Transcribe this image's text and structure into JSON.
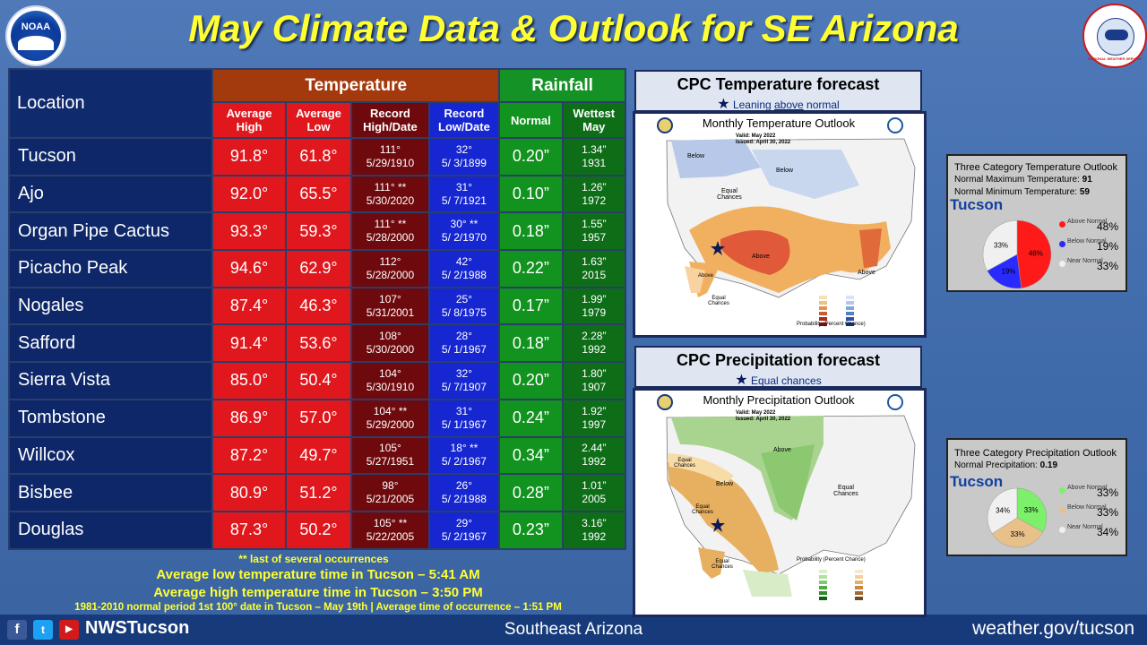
{
  "title": "May Climate Data & Outlook for SE Arizona",
  "logos": {
    "noaa": "NOAA",
    "nws": "NATIONAL WEATHER SERVICE"
  },
  "table": {
    "location_header": "Location",
    "temperature_header": "Temperature",
    "rainfall_header": "Rainfall",
    "sub_headers": [
      "Average High",
      "Average Low",
      "Record High/Date",
      "Record Low/Date",
      "Normal",
      "Wettest May"
    ],
    "rows": [
      {
        "loc": "Tucson",
        "avg_high": "91.8°",
        "avg_low": "61.8°",
        "rec_high": "111°",
        "rec_high_date": "5/29/1910",
        "rec_low": "32°",
        "rec_low_date": "5/ 3/1899",
        "normal": "0.20”",
        "wettest": "1.34”",
        "wettest_year": "1931"
      },
      {
        "loc": "Ajo",
        "avg_high": "92.0°",
        "avg_low": "65.5°",
        "rec_high": "111° **",
        "rec_high_date": "5/30/2020",
        "rec_low": "31°",
        "rec_low_date": "5/ 7/1921",
        "normal": "0.10”",
        "wettest": "1.26”",
        "wettest_year": "1972"
      },
      {
        "loc": "Organ Pipe Cactus",
        "avg_high": "93.3°",
        "avg_low": "59.3°",
        "rec_high": "111° **",
        "rec_high_date": "5/28/2000",
        "rec_low": "30° **",
        "rec_low_date": "5/ 2/1970",
        "normal": "0.18”",
        "wettest": "1.55”",
        "wettest_year": "1957"
      },
      {
        "loc": "Picacho Peak",
        "avg_high": "94.6°",
        "avg_low": "62.9°",
        "rec_high": "112°",
        "rec_high_date": "5/28/2000",
        "rec_low": "42°",
        "rec_low_date": "5/ 2/1988",
        "normal": "0.22”",
        "wettest": "1.63”",
        "wettest_year": "2015"
      },
      {
        "loc": "Nogales",
        "avg_high": "87.4°",
        "avg_low": "46.3°",
        "rec_high": "107°",
        "rec_high_date": "5/31/2001",
        "rec_low": "25°",
        "rec_low_date": "5/ 8/1975",
        "normal": "0.17”",
        "wettest": "1.99”",
        "wettest_year": "1979"
      },
      {
        "loc": "Safford",
        "avg_high": "91.4°",
        "avg_low": "53.6°",
        "rec_high": "108°",
        "rec_high_date": "5/30/2000",
        "rec_low": "28°",
        "rec_low_date": "5/ 1/1967",
        "normal": "0.18”",
        "wettest": "2.28”",
        "wettest_year": "1992"
      },
      {
        "loc": "Sierra Vista",
        "avg_high": "85.0°",
        "avg_low": "50.4°",
        "rec_high": "104°",
        "rec_high_date": "5/30/1910",
        "rec_low": "32°",
        "rec_low_date": "5/ 7/1907",
        "normal": "0.20”",
        "wettest": "1.80”",
        "wettest_year": "1907"
      },
      {
        "loc": "Tombstone",
        "avg_high": "86.9°",
        "avg_low": "57.0°",
        "rec_high": "104° **",
        "rec_high_date": "5/29/2000",
        "rec_low": "31°",
        "rec_low_date": "5/ 1/1967",
        "normal": "0.24”",
        "wettest": "1.92”",
        "wettest_year": "1997"
      },
      {
        "loc": "Willcox",
        "avg_high": "87.2°",
        "avg_low": "49.7°",
        "rec_high": "105°",
        "rec_high_date": "5/27/1951",
        "rec_low": "18° **",
        "rec_low_date": "5/ 2/1967",
        "normal": "0.34”",
        "wettest": "2.44”",
        "wettest_year": "1992"
      },
      {
        "loc": "Bisbee",
        "avg_high": "80.9°",
        "avg_low": "51.2°",
        "rec_high": "98°",
        "rec_high_date": "5/21/2005",
        "rec_low": "26°",
        "rec_low_date": "5/ 2/1988",
        "normal": "0.28”",
        "wettest": "1.01”",
        "wettest_year": "2005"
      },
      {
        "loc": "Douglas",
        "avg_high": "87.3°",
        "avg_low": "50.2°",
        "rec_high": "105° **",
        "rec_high_date": "5/22/2005",
        "rec_low": "29°",
        "rec_low_date": "5/ 2/1967",
        "normal": "0.23”",
        "wettest": "3.16”",
        "wettest_year": "1992"
      }
    ]
  },
  "notes": {
    "occurrences": "** last of several occurrences",
    "avg_low_time": "Average low temperature time in Tucson – 5:41 AM",
    "avg_high_time": "Average high temperature time in Tucson – 3:50 PM",
    "first_100": "1981-2010 normal period 1st 100° date in Tucson – May 19th | Average time of occurrence – 1:51 PM"
  },
  "footer": {
    "handle": "NWSTucson",
    "center": "Southeast Arizona",
    "url": "weather.gov/tucson"
  },
  "temp_forecast": {
    "header": "CPC Temperature forecast",
    "leaning_prefix": "Leaning ",
    "leaning_word": "above",
    "leaning_suffix": " normal",
    "map_title": "Monthly Temperature Outlook",
    "valid": "Valid:  May 2022",
    "issued": "Issued:  April 30, 2022",
    "labels": {
      "below1": "Below",
      "below2": "Below",
      "equal": "Equal Chances",
      "above": "Above",
      "above2": "Above",
      "above3": "Above",
      "equal2": "Equal Chances"
    },
    "legend_title": "Probability (Percent Chance)"
  },
  "precip_forecast": {
    "header": "CPC Precipitation forecast",
    "sub": "Equal chances",
    "map_title": "Monthly Precipitation Outlook",
    "valid": "Valid:  May 2022",
    "issued": "Issued:  April 30, 2022",
    "labels": {
      "above": "Above",
      "below": "Below",
      "equal1": "Equal Chances",
      "equal2": "Equal Chances",
      "equal3": "Equal Chances",
      "equal4": "Equal Chances"
    },
    "legend_title": "Probability (Percent Chance)"
  },
  "temp_pie": {
    "title": "Three Category Temperature Outlook",
    "line1_label": "Normal Maximum Temperature:",
    "line1_val": "91",
    "line2_label": "Normal Minimum Temperature:",
    "line2_val": "59",
    "city": "Tucson",
    "chart_data": {
      "type": "pie",
      "categories": [
        "Above Normal",
        "Below Normal",
        "Near Normal"
      ],
      "values": [
        48,
        19,
        33
      ],
      "labels": [
        "48%",
        "19%",
        "33%"
      ],
      "colors": [
        "#ff1a1a",
        "#2a2aff",
        "#f0f0f0"
      ]
    }
  },
  "precip_pie": {
    "title": "Three Category Precipitation Outlook",
    "line1_label": "Normal Precipitation:",
    "line1_val": "0.19",
    "city": "Tucson",
    "chart_data": {
      "type": "pie",
      "categories": [
        "Above Normal",
        "Below Normal",
        "Near Normal"
      ],
      "values": [
        33,
        33,
        34
      ],
      "labels": [
        "33%",
        "33%",
        "34%"
      ],
      "colors": [
        "#7cf06a",
        "#e8c08a",
        "#f0f0f0"
      ]
    }
  }
}
